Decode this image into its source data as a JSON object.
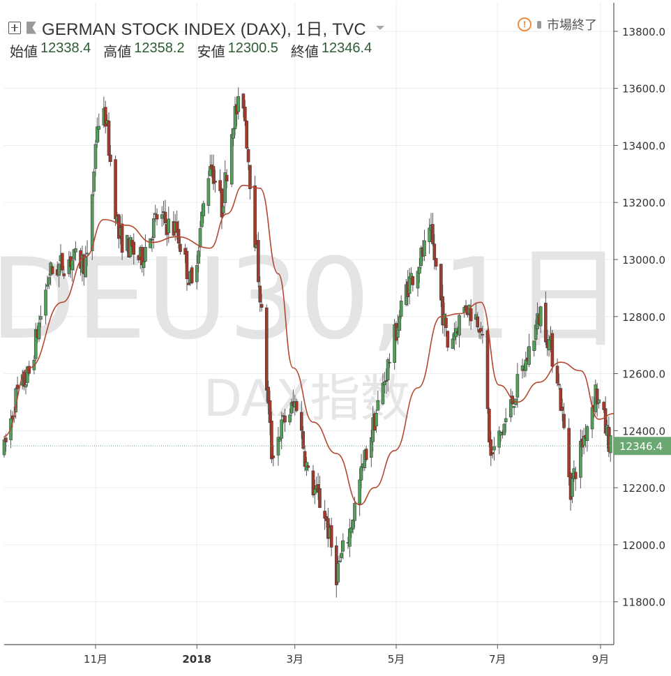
{
  "header": {
    "title": "GERMAN STOCK INDEX (DAX), 1日, TVC",
    "ohlc": [
      {
        "label": "始値",
        "value": "12338.4"
      },
      {
        "label": "高値",
        "value": "12358.2"
      },
      {
        "label": "安値",
        "value": "12300.5"
      },
      {
        "label": "終値",
        "value": "12346.4"
      }
    ],
    "status": "市場終了",
    "status_icon": "exclamation-circle-icon",
    "flag_icon": "flag-icon",
    "add_icon": "plus-square-icon"
  },
  "watermark": {
    "symbol": "DEU30, 1日",
    "name": "DAX指数"
  },
  "colors": {
    "up": "#53a05a",
    "down": "#a5392a",
    "ma": "#b4472f",
    "last_price_bg": "#6aa771"
  },
  "chart_data": {
    "type": "candlestick",
    "title": "GERMAN STOCK INDEX (DAX), 1日, TVC",
    "ylim": [
      11650,
      13900
    ],
    "y_ticks": [
      11800,
      12000,
      12200,
      12400,
      12600,
      12800,
      13000,
      13200,
      13400,
      13600,
      13800
    ],
    "y_tick_labels": [
      "11800.0",
      "12000.0",
      "12200.0",
      "12400.0",
      "12600.0",
      "12800.0",
      "13000.0",
      "13200.0",
      "13400.0",
      "13600.0",
      "13800.0"
    ],
    "x_ticks": [
      {
        "label": "11月",
        "date": "2017-11-01"
      },
      {
        "label": "2018",
        "date": "2018-01-01"
      },
      {
        "label": "3月",
        "date": "2018-03-01"
      },
      {
        "label": "5月",
        "date": "2018-05-01"
      },
      {
        "label": "7月",
        "date": "2018-07-01"
      },
      {
        "label": "9月",
        "date": "2018-09-01"
      }
    ],
    "x_range": [
      "2017-09-07",
      "2018-09-09"
    ],
    "last_price": 12346.4,
    "last_price_label": "12346.4",
    "moving_average_anchors": [
      [
        "2017-09-07",
        12380
      ],
      [
        "2017-09-22",
        12620
      ],
      [
        "2017-10-12",
        12850
      ],
      [
        "2017-10-26",
        13010
      ],
      [
        "2017-11-06",
        13140
      ],
      [
        "2017-11-20",
        13120
      ],
      [
        "2017-12-05",
        13060
      ],
      [
        "2017-12-20",
        13080
      ],
      [
        "2018-01-09",
        13040
      ],
      [
        "2018-01-19",
        13160
      ],
      [
        "2018-01-29",
        13260
      ],
      [
        "2018-02-08",
        13250
      ],
      [
        "2018-02-19",
        12950
      ],
      [
        "2018-02-28",
        12620
      ],
      [
        "2018-03-12",
        12430
      ],
      [
        "2018-03-26",
        12320
      ],
      [
        "2018-04-09",
        12140
      ],
      [
        "2018-04-18",
        12200
      ],
      [
        "2018-04-30",
        12330
      ],
      [
        "2018-05-14",
        12550
      ],
      [
        "2018-05-28",
        12800
      ],
      [
        "2018-06-08",
        12810
      ],
      [
        "2018-06-21",
        12850
      ],
      [
        "2018-07-02",
        12560
      ],
      [
        "2018-07-13",
        12500
      ],
      [
        "2018-07-26",
        12570
      ],
      [
        "2018-08-08",
        12640
      ],
      [
        "2018-08-20",
        12610
      ],
      [
        "2018-08-31",
        12440
      ],
      [
        "2018-09-09",
        12460
      ]
    ],
    "close_path_anchors": [
      [
        "2017-09-07",
        12330
      ],
      [
        "2017-09-14",
        12520
      ],
      [
        "2017-09-22",
        12600
      ],
      [
        "2017-10-04",
        12950
      ],
      [
        "2017-10-16",
        13000
      ],
      [
        "2017-10-27",
        12990
      ],
      [
        "2017-11-02",
        13480
      ],
      [
        "2017-11-07",
        13500
      ],
      [
        "2017-11-15",
        13080
      ],
      [
        "2017-11-28",
        13000
      ],
      [
        "2017-12-08",
        13150
      ],
      [
        "2017-12-20",
        13100
      ],
      [
        "2017-12-29",
        12900
      ],
      [
        "2018-01-09",
        13350
      ],
      [
        "2018-01-16",
        13180
      ],
      [
        "2018-01-23",
        13500
      ],
      [
        "2018-01-29",
        13560
      ],
      [
        "2018-02-08",
        12880
      ],
      [
        "2018-02-15",
        12320
      ],
      [
        "2018-02-23",
        12440
      ],
      [
        "2018-03-02",
        12500
      ],
      [
        "2018-03-09",
        12240
      ],
      [
        "2018-03-19",
        12110
      ],
      [
        "2018-03-26",
        11900
      ],
      [
        "2018-04-03",
        12050
      ],
      [
        "2018-04-12",
        12300
      ],
      [
        "2018-04-24",
        12580
      ],
      [
        "2018-05-07",
        12900
      ],
      [
        "2018-05-22",
        13080
      ],
      [
        "2018-06-01",
        12700
      ],
      [
        "2018-06-12",
        12840
      ],
      [
        "2018-06-21",
        12780
      ],
      [
        "2018-06-27",
        12300
      ],
      [
        "2018-07-05",
        12420
      ],
      [
        "2018-07-18",
        12640
      ],
      [
        "2018-07-27",
        12820
      ],
      [
        "2018-08-06",
        12600
      ],
      [
        "2018-08-14",
        12200
      ],
      [
        "2018-08-22",
        12380
      ],
      [
        "2018-08-29",
        12540
      ],
      [
        "2018-09-07",
        12346
      ]
    ]
  }
}
